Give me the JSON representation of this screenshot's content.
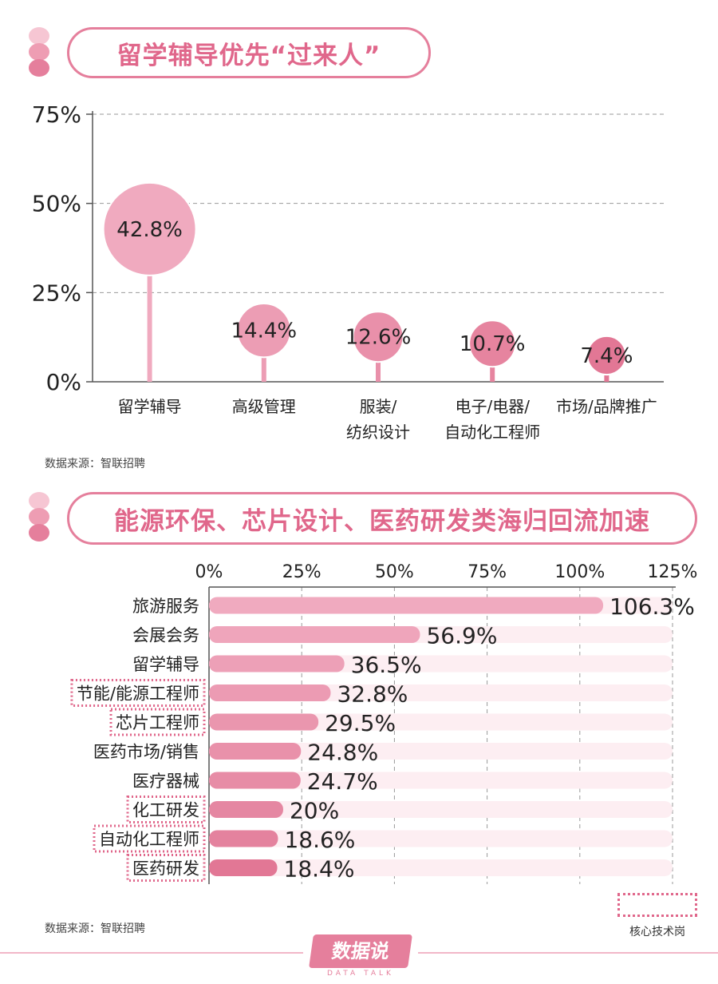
{
  "section1": {
    "title": "留学辅导优先“过来人”",
    "source": "数据来源：智联招聘"
  },
  "section2": {
    "title": "能源环保、芯片设计、医药研发类海归回流加速",
    "source": "数据来源：智联招聘",
    "legend_label": "核心技术岗"
  },
  "logo": {
    "name": "数据说",
    "sub": "DATA TALK"
  },
  "colors": {
    "accent": "#e0678b",
    "bar_track": "#fdeef2",
    "dot1": "#f6c6d3",
    "dot2": "#ee9db3",
    "dot3": "#e57f9c"
  },
  "chart_data": [
    {
      "type": "scatter",
      "title": "留学辅导优先“过来人”",
      "categories": [
        "留学辅导",
        "高级管理",
        "服装/\n纺织设计",
        "电子/电器/\n自动化工程师",
        "市场/品牌推广"
      ],
      "values": [
        42.8,
        14.4,
        12.6,
        10.7,
        7.4
      ],
      "labels": [
        "42.8%",
        "14.4%",
        "12.6%",
        "10.7%",
        "7.4%"
      ],
      "ylim": [
        0,
        75
      ],
      "yticks": [
        "0%",
        "25%",
        "50%",
        "75%"
      ],
      "colors": [
        "#f0aabf",
        "#ec9db4",
        "#e990aa",
        "#e6849f",
        "#e27795"
      ],
      "grid": true
    },
    {
      "type": "bar",
      "orientation": "horizontal",
      "title": "能源环保、芯片设计、医药研发类海归回流加速",
      "categories": [
        "旅游服务",
        "会展会务",
        "留学辅导",
        "节能/能源工程师",
        "芯片工程师",
        "医药市场/销售",
        "医疗器械",
        "化工研发",
        "自动化工程师",
        "医药研发"
      ],
      "values": [
        106.3,
        56.9,
        36.5,
        32.8,
        29.5,
        24.8,
        24.7,
        20,
        18.6,
        18.4
      ],
      "labels": [
        "106.3%",
        "56.9%",
        "36.5%",
        "32.8%",
        "29.5%",
        "24.8%",
        "24.7%",
        "20%",
        "18.6%",
        "18.4%"
      ],
      "highlighted": [
        false,
        false,
        false,
        true,
        true,
        false,
        false,
        true,
        true,
        true
      ],
      "xlim": [
        0,
        125
      ],
      "xticks": [
        "0%",
        "25%",
        "50%",
        "75%",
        "100%",
        "125%"
      ],
      "colors": [
        "#f0aabf",
        "#efa5bb",
        "#eda0b7",
        "#ec9bb3",
        "#ea96ae",
        "#e991aa",
        "#e78ca6",
        "#e587a2",
        "#e4829e",
        "#e27795"
      ],
      "grid": true
    }
  ]
}
